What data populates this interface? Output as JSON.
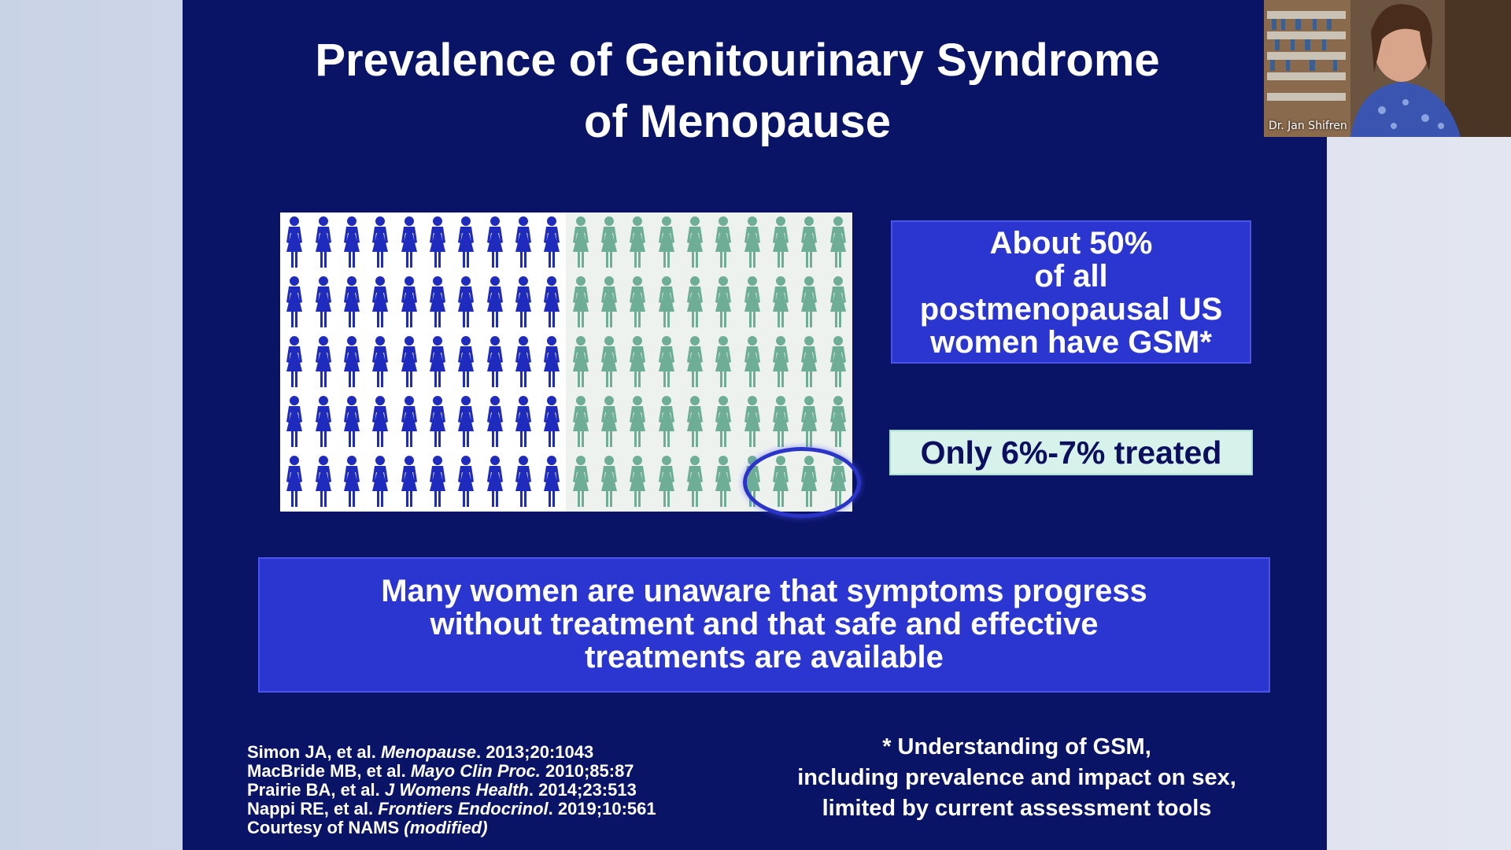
{
  "slide": {
    "title_lines": [
      "Prevalence of Genitourinary Syndrome",
      "of Menopause"
    ],
    "pictogram": {
      "rows": 5,
      "columns": 20,
      "affected_fraction": 0.5,
      "treated_highlight_count": 3,
      "affected_color": "#1f2bbd",
      "unaffected_color": "#6fae96",
      "icon": "woman-figure-icon"
    },
    "stat_box_lines": [
      "About 50%",
      "of all",
      "postmenopausal US",
      "women have GSM*"
    ],
    "treated_label": "Only 6%-7% treated",
    "message_lines": [
      "Many women are unaware that symptoms progress",
      "without treatment and that safe and effective",
      "treatments are available"
    ],
    "references": [
      {
        "prefix": "Simon JA, et al. ",
        "journal": "Menopause",
        "suffix": ". 2013;20:1043"
      },
      {
        "prefix": "MacBride MB, et al. ",
        "journal": "Mayo Clin Proc.",
        "suffix": " 2010;85:87"
      },
      {
        "prefix": "Prairie BA, et al. ",
        "journal": "J Womens Health",
        "suffix": ". 2014;23:513"
      },
      {
        "prefix": "Nappi RE, et al. ",
        "journal": "Frontiers Endocrinol",
        "suffix": ". 2019;10:561"
      },
      {
        "prefix": "Courtesy of NAMS ",
        "journal": "(modified)",
        "suffix": ""
      }
    ],
    "footnote_lines": [
      "* Understanding of GSM,",
      "including prevalence and impact on sex,",
      "limited by current assessment tools"
    ]
  },
  "video": {
    "participant_name": "Dr. Jan Shifren"
  },
  "colors": {
    "slide_background": "#0a1466",
    "box_blue": "#2b35cf",
    "treated_box": "#d6f2ea"
  }
}
